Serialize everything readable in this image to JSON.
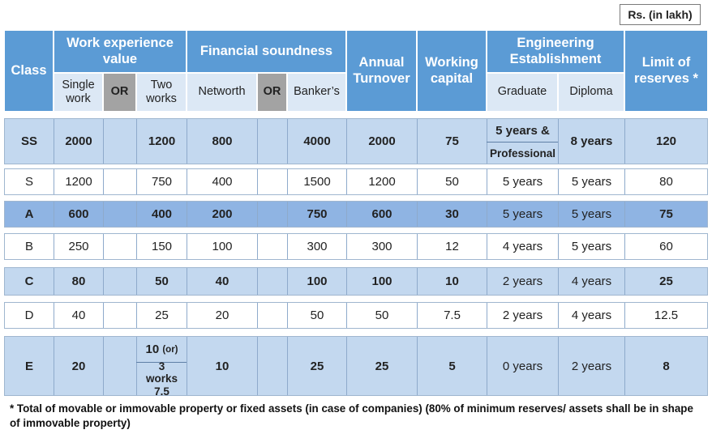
{
  "unit": "Rs. (in lakh)",
  "headers": {
    "class": "Class",
    "work_experience": "Work experience value",
    "financial": "Financial soundness",
    "annual": "Annual Turnover",
    "working": "Working capital",
    "engineering": "Engineering Establishment",
    "limit": "Limit of reserves *"
  },
  "subheaders": {
    "single": "Single work",
    "or1": "OR",
    "two": "Two works",
    "networth": "Networth",
    "or2": "OR",
    "bankers": "Banker’s",
    "graduate": "Graduate",
    "diploma": "Diploma"
  },
  "rows": [
    {
      "class": "SS",
      "single": "2000",
      "two": "1200",
      "networth": "800",
      "bankers": "4000",
      "turnover": "2000",
      "working": "75",
      "graduate_top": "5 years &",
      "graduate_bottom": "Professional",
      "diploma": "8 years",
      "limit": "120"
    },
    {
      "class": "S",
      "single": "1200",
      "two": "750",
      "networth": "400",
      "bankers": "1500",
      "turnover": "1200",
      "working": "50",
      "graduate": "5 years",
      "diploma": "5 years",
      "limit": "80"
    },
    {
      "class": "A",
      "single": "600",
      "two": "400",
      "networth": "200",
      "bankers": "750",
      "turnover": "600",
      "working": "30",
      "graduate": "5 years",
      "diploma": "5 years",
      "limit": "75"
    },
    {
      "class": "B",
      "single": "250",
      "two": "150",
      "networth": "100",
      "bankers": "300",
      "turnover": "300",
      "working": "12",
      "graduate": "4 years",
      "diploma": "5 years",
      "limit": "60"
    },
    {
      "class": "C",
      "single": "80",
      "two": "50",
      "networth": "40",
      "bankers": "100",
      "turnover": "100",
      "working": "10",
      "graduate": "2 years",
      "diploma": "4 years",
      "limit": "25"
    },
    {
      "class": "D",
      "single": "40",
      "two": "25",
      "networth": "20",
      "bankers": "50",
      "turnover": "50",
      "working": "7.5",
      "graduate": "2 years",
      "diploma": "4 years",
      "limit": "12.5"
    },
    {
      "class": "E",
      "single": "20",
      "two_top": "10",
      "two_top_suffix": "(or)",
      "two_bottom": "3 works 7.5",
      "networth": "10",
      "bankers": "25",
      "turnover": "25",
      "working": "5",
      "graduate": "0 years",
      "diploma": "2 years",
      "limit": "8"
    }
  ],
  "footnote": "*  Total of movable or immovable property or fixed assets (in case of companies) (80% of minimum reserves/ assets shall be in shape of immovable property)"
}
